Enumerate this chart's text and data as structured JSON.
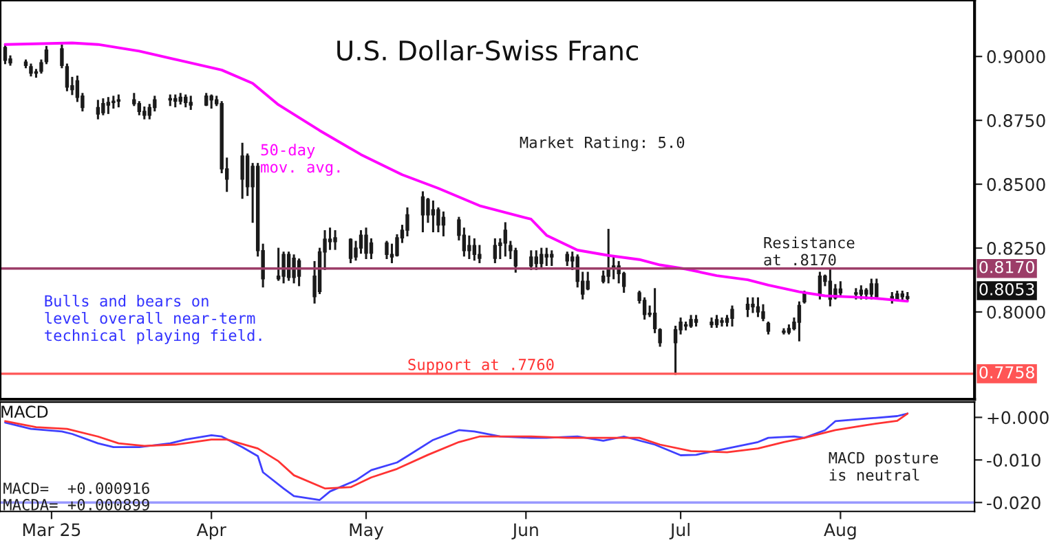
{
  "chart_data": [
    {
      "type": "candlestick",
      "title": "U.S. Dollar-Swiss Franc",
      "x": [
        "2025-02-20",
        "2025-02-21",
        "2025-02-24",
        "2025-02-25",
        "2025-02-26",
        "2025-02-27",
        "2025-02-28",
        "2025-03-03",
        "2025-03-04",
        "2025-03-05",
        "2025-03-06",
        "2025-03-07",
        "2025-03-10",
        "2025-03-11",
        "2025-03-12",
        "2025-03-13",
        "2025-03-14",
        "2025-03-17",
        "2025-03-18",
        "2025-03-19",
        "2025-03-20",
        "2025-03-21",
        "2025-03-24",
        "2025-03-25",
        "2025-03-26",
        "2025-03-27",
        "2025-03-28",
        "2025-03-31",
        "2025-04-01",
        "2025-04-02",
        "2025-04-03",
        "2025-04-04",
        "2025-04-07",
        "2025-04-08",
        "2025-04-09",
        "2025-04-10",
        "2025-04-11",
        "2025-04-14",
        "2025-04-15",
        "2025-04-16",
        "2025-04-17",
        "2025-04-18",
        "2025-04-21",
        "2025-04-22",
        "2025-04-23",
        "2025-04-24",
        "2025-04-25",
        "2025-04-28",
        "2025-04-29",
        "2025-04-30",
        "2025-05-01",
        "2025-05-02",
        "2025-05-05",
        "2025-05-06",
        "2025-05-07",
        "2025-05-08",
        "2025-05-09",
        "2025-05-12",
        "2025-05-13",
        "2025-05-14",
        "2025-05-15",
        "2025-05-16",
        "2025-05-19",
        "2025-05-20",
        "2025-05-21",
        "2025-05-22",
        "2025-05-23",
        "2025-05-26",
        "2025-05-27",
        "2025-05-28",
        "2025-05-29",
        "2025-05-30",
        "2025-06-02",
        "2025-06-03",
        "2025-06-04",
        "2025-06-05",
        "2025-06-06",
        "2025-06-09",
        "2025-06-10",
        "2025-06-11",
        "2025-06-12",
        "2025-06-13",
        "2025-06-16",
        "2025-06-17",
        "2025-06-18",
        "2025-06-19",
        "2025-06-20",
        "2025-06-23",
        "2025-06-24",
        "2025-06-25",
        "2025-06-26",
        "2025-06-27",
        "2025-06-30",
        "2025-07-01",
        "2025-07-02",
        "2025-07-03",
        "2025-07-04",
        "2025-07-07",
        "2025-07-08",
        "2025-07-09",
        "2025-07-10",
        "2025-07-11",
        "2025-07-14",
        "2025-07-15",
        "2025-07-16",
        "2025-07-17",
        "2025-07-18",
        "2025-07-21",
        "2025-07-22",
        "2025-07-23",
        "2025-07-24",
        "2025-07-25",
        "2025-07-28",
        "2025-07-29",
        "2025-07-30",
        "2025-07-31",
        "2025-08-01",
        "2025-08-04",
        "2025-08-05",
        "2025-08-06",
        "2025-08-07",
        "2025-08-08",
        "2025-08-11",
        "2025-08-12",
        "2025-08-13",
        "2025-08-14"
      ],
      "ohlc": [
        [
          0.9035,
          0.9047,
          0.8974,
          0.8985
        ],
        [
          0.899,
          0.9,
          0.8968,
          0.8975
        ],
        [
          0.8978,
          0.8984,
          0.8958,
          0.8965
        ],
        [
          0.896,
          0.8968,
          0.8926,
          0.8935
        ],
        [
          0.8935,
          0.8947,
          0.8921,
          0.894
        ],
        [
          0.8942,
          0.8984,
          0.8937,
          0.8975
        ],
        [
          0.898,
          0.9037,
          0.8974,
          0.9025
        ],
        [
          0.903,
          0.9042,
          0.8958,
          0.8965
        ],
        [
          0.896,
          0.8968,
          0.8868,
          0.888
        ],
        [
          0.8885,
          0.8916,
          0.8853,
          0.887
        ],
        [
          0.8905,
          0.8921,
          0.8826,
          0.884
        ],
        [
          0.8845,
          0.8853,
          0.8789,
          0.88
        ],
        [
          0.88,
          0.8826,
          0.8758,
          0.8775
        ],
        [
          0.878,
          0.8832,
          0.8774,
          0.8815
        ],
        [
          0.881,
          0.8837,
          0.8779,
          0.882
        ],
        [
          0.882,
          0.8842,
          0.88,
          0.8825
        ],
        [
          0.8825,
          0.8847,
          0.8805,
          0.883
        ],
        [
          0.883,
          0.8853,
          0.881,
          0.8815
        ],
        [
          0.8815,
          0.8821,
          0.8774,
          0.8785
        ],
        [
          0.8785,
          0.88,
          0.8758,
          0.877
        ],
        [
          0.877,
          0.881,
          0.8758,
          0.88
        ],
        [
          0.88,
          0.8842,
          0.8789,
          0.883
        ],
        [
          0.883,
          0.8847,
          0.881,
          0.8835
        ],
        [
          0.8835,
          0.8847,
          0.8805,
          0.8825
        ],
        [
          0.8825,
          0.8853,
          0.8816,
          0.884
        ],
        [
          0.884,
          0.8847,
          0.8805,
          0.882
        ],
        [
          0.882,
          0.8842,
          0.8795,
          0.881
        ],
        [
          0.881,
          0.8853,
          0.881,
          0.8845
        ],
        [
          0.8845,
          0.8847,
          0.88,
          0.883
        ],
        [
          0.883,
          0.8842,
          0.881,
          0.8815
        ],
        [
          0.8815,
          0.8821,
          0.8547,
          0.856
        ],
        [
          0.856,
          0.86,
          0.8474,
          0.852
        ],
        [
          0.852,
          0.8658,
          0.8447,
          0.861
        ],
        [
          0.861,
          0.8616,
          0.8458,
          0.849
        ],
        [
          0.849,
          0.8579,
          0.8353,
          0.857
        ],
        [
          0.857,
          0.8579,
          0.8221,
          0.824
        ],
        [
          0.824,
          0.8263,
          0.81,
          0.813
        ],
        [
          0.813,
          0.8247,
          0.8126,
          0.814
        ],
        [
          0.814,
          0.8232,
          0.8116,
          0.8225
        ],
        [
          0.8225,
          0.8232,
          0.8126,
          0.8135
        ],
        [
          0.8135,
          0.8221,
          0.8116,
          0.821
        ],
        [
          0.82,
          0.8205,
          0.8105,
          0.814
        ],
        [
          0.814,
          0.8195,
          0.8037,
          0.806
        ],
        [
          0.808,
          0.8247,
          0.8074,
          0.8235
        ],
        [
          0.8235,
          0.8316,
          0.8168,
          0.8285
        ],
        [
          0.8285,
          0.8326,
          0.8247,
          0.8275
        ],
        [
          0.8275,
          0.8316,
          0.8247,
          0.829
        ],
        [
          0.8284,
          0.8284,
          0.8195,
          0.821
        ],
        [
          0.8215,
          0.8274,
          0.8205,
          0.825
        ],
        [
          0.825,
          0.8316,
          0.8232,
          0.83
        ],
        [
          0.83,
          0.8326,
          0.8211,
          0.823
        ],
        [
          0.823,
          0.8284,
          0.8211,
          0.827
        ],
        [
          0.827,
          0.8274,
          0.8211,
          0.8225
        ],
        [
          0.8225,
          0.8263,
          0.8195,
          0.8215
        ],
        [
          0.8221,
          0.83,
          0.8221,
          0.829
        ],
        [
          0.829,
          0.8337,
          0.8274,
          0.832
        ],
        [
          0.832,
          0.8405,
          0.83,
          0.838
        ],
        [
          0.838,
          0.8468,
          0.8316,
          0.845
        ],
        [
          0.844,
          0.8442,
          0.8353,
          0.838
        ],
        [
          0.838,
          0.8432,
          0.8316,
          0.84
        ],
        [
          0.84,
          0.8405,
          0.8316,
          0.834
        ],
        [
          0.834,
          0.8389,
          0.83,
          0.837
        ],
        [
          0.836,
          0.8368,
          0.8284,
          0.83
        ],
        [
          0.83,
          0.8326,
          0.8221,
          0.824
        ],
        [
          0.824,
          0.8295,
          0.8211,
          0.826
        ],
        [
          0.826,
          0.8284,
          0.8205,
          0.8225
        ],
        [
          0.8225,
          0.8258,
          0.8195,
          0.821
        ],
        [
          0.821,
          0.8284,
          0.8195,
          0.826
        ],
        [
          0.826,
          0.8284,
          0.8211,
          0.827
        ],
        [
          0.827,
          0.8347,
          0.8221,
          0.832
        ],
        [
          0.826,
          0.8274,
          0.8211,
          0.824
        ],
        [
          0.824,
          0.8247,
          0.8158,
          0.818
        ],
        [
          0.818,
          0.8237,
          0.8168,
          0.8215
        ],
        [
          0.8215,
          0.8237,
          0.8168,
          0.819
        ],
        [
          0.819,
          0.8247,
          0.8179,
          0.8225
        ],
        [
          0.8225,
          0.8247,
          0.8184,
          0.8215
        ],
        [
          0.8215,
          0.8237,
          0.8184,
          0.8225
        ],
        [
          0.8225,
          0.8232,
          0.8184,
          0.82
        ],
        [
          0.82,
          0.8232,
          0.8168,
          0.8215
        ],
        [
          0.8215,
          0.8221,
          0.81,
          0.812
        ],
        [
          0.812,
          0.8153,
          0.8053,
          0.807
        ],
        [
          0.809,
          0.8153,
          0.8089,
          0.812
        ],
        [
          0.812,
          0.8158,
          0.8116,
          0.814
        ],
        [
          0.814,
          0.8321,
          0.8116,
          0.817
        ],
        [
          0.817,
          0.8211,
          0.8132,
          0.818
        ],
        [
          0.818,
          0.8195,
          0.8116,
          0.815
        ],
        [
          0.815,
          0.8153,
          0.8079,
          0.81
        ],
        [
          0.8075,
          0.8079,
          0.8037,
          0.8045
        ],
        [
          0.8045,
          0.8053,
          0.7974,
          0.799
        ],
        [
          0.799,
          0.8021,
          0.7984,
          0.7995
        ],
        [
          0.7995,
          0.8089,
          0.7921,
          0.7935
        ],
        [
          0.793,
          0.7932,
          0.7868,
          0.788
        ],
        [
          0.788,
          0.7942,
          0.7758,
          0.793
        ],
        [
          0.793,
          0.7974,
          0.7916,
          0.796
        ],
        [
          0.795,
          0.7958,
          0.7932,
          0.7945
        ],
        [
          0.7945,
          0.7984,
          0.7942,
          0.797
        ],
        [
          0.797,
          0.7984,
          0.7947,
          0.796
        ],
        [
          0.796,
          0.7974,
          0.7942,
          0.795
        ],
        [
          0.795,
          0.7984,
          0.7942,
          0.797
        ],
        [
          0.7965,
          0.7974,
          0.7947,
          0.796
        ],
        [
          0.796,
          0.7984,
          0.7947,
          0.7975
        ],
        [
          0.7975,
          0.8021,
          0.7947,
          0.801
        ],
        [
          0.801,
          0.8053,
          0.7984,
          0.803
        ],
        [
          0.803,
          0.8053,
          0.8,
          0.802
        ],
        [
          0.802,
          0.8053,
          0.7984,
          0.8
        ],
        [
          0.8,
          0.8026,
          0.7968,
          0.7975
        ],
        [
          0.7955,
          0.7958,
          0.7916,
          0.7925
        ],
        [
          0.7925,
          0.7932,
          0.7916,
          0.792
        ],
        [
          0.792,
          0.7947,
          0.7916,
          0.7935
        ],
        [
          0.7935,
          0.7974,
          0.7932,
          0.796
        ],
        [
          0.796,
          0.8037,
          0.7889,
          0.8025
        ],
        [
          0.804,
          0.8079,
          0.8037,
          0.807
        ],
        [
          0.807,
          0.8153,
          0.8053,
          0.814
        ],
        [
          0.814,
          0.8142,
          0.8105,
          0.812
        ],
        [
          0.812,
          0.8168,
          0.8026,
          0.805
        ],
        [
          0.8055,
          0.8105,
          0.8053,
          0.809
        ],
        [
          0.809,
          0.8116,
          0.8063,
          0.8075
        ],
        [
          0.8075,
          0.8089,
          0.8053,
          0.807
        ],
        [
          0.807,
          0.81,
          0.8053,
          0.8085
        ],
        [
          0.8085,
          0.8089,
          0.8053,
          0.807
        ],
        [
          0.807,
          0.8126,
          0.8053,
          0.811
        ],
        [
          0.811,
          0.8126,
          0.8053,
          0.806
        ],
        [
          0.806,
          0.8074,
          0.8037,
          0.805
        ],
        [
          0.805,
          0.8079,
          0.8047,
          0.807
        ],
        [
          0.807,
          0.8079,
          0.8047,
          0.806
        ],
        [
          0.806,
          0.8074,
          0.8047,
          0.8053
        ]
      ],
      "color": "#1a1a1a",
      "series": [
        {
          "type": "line",
          "name": "50-day\nmov. avg.",
          "color": "#ff00ff",
          "x": [
            "2025-02-20",
            "2025-03-05",
            "2025-03-10",
            "2025-03-18",
            "2025-03-26",
            "2025-04-03",
            "2025-04-09",
            "2025-04-14",
            "2025-04-22",
            "2025-04-30",
            "2025-05-08",
            "2025-05-15",
            "2025-05-23",
            "2025-06-02",
            "2025-06-05",
            "2025-06-11",
            "2025-06-17",
            "2025-06-23",
            "2025-06-27",
            "2025-07-02",
            "2025-07-08",
            "2025-07-14",
            "2025-07-18",
            "2025-07-24",
            "2025-07-29",
            "2025-08-04",
            "2025-08-08",
            "2025-08-14"
          ],
          "values": [
            0.9047,
            0.9053,
            0.9047,
            0.9021,
            0.8984,
            0.8947,
            0.8895,
            0.8811,
            0.871,
            0.8616,
            0.8537,
            0.8484,
            0.8416,
            0.8363,
            0.83,
            0.8242,
            0.8221,
            0.8205,
            0.8184,
            0.8168,
            0.8142,
            0.8126,
            0.8105,
            0.8079,
            0.8063,
            0.8058,
            0.8053,
            0.8042
          ]
        }
      ],
      "xlim": [
        "2025-02-19",
        "2025-08-27"
      ],
      "ylim": [
        0.7658,
        0.9221
      ],
      "yticks": [
        {
          "value": 0.8,
          "label": "0.8000"
        },
        {
          "value": 0.825,
          "label": "0.8250"
        },
        {
          "value": 0.85,
          "label": "0.8500"
        },
        {
          "value": 0.875,
          "label": "0.8750"
        },
        {
          "value": 0.9,
          "label": "0.9000"
        }
      ],
      "tick_labels": "y",
      "ref_lines": [
        {
          "axis": "y",
          "value": 0.817,
          "label": "0.8170",
          "color": "#9c3d68"
        },
        {
          "axis": "y",
          "value": 0.7758,
          "label": "0.7758",
          "color": "#ff5555"
        }
      ],
      "annotations": [
        "Market Rating: 5.0",
        "Bulls and bears on\nlevel overall near-term\ntechnical playing field.",
        {
          "text": "Resistance\nat .8170",
          "x": "2025-07-17",
          "y": 0.817
        },
        {
          "text": "Support at .7760",
          "x": "2025-05-09",
          "y": 0.776
        },
        "0.8053"
      ],
      "grid": false,
      "legend": false
    },
    {
      "type": "line",
      "title": "MACD",
      "series": [
        {
          "color": "#4040ff",
          "x": [
            "2025-02-20",
            "2025-02-25",
            "2025-03-03",
            "2025-03-05",
            "2025-03-10",
            "2025-03-13",
            "2025-03-18",
            "2025-03-24",
            "2025-03-27",
            "2025-04-01",
            "2025-04-03",
            "2025-04-07",
            "2025-04-10",
            "2025-04-11",
            "2025-04-15",
            "2025-04-17",
            "2025-04-22",
            "2025-04-24",
            "2025-04-29",
            "2025-05-02",
            "2025-05-07",
            "2025-05-09",
            "2025-05-14",
            "2025-05-19",
            "2025-05-22",
            "2025-05-27",
            "2025-06-02",
            "2025-06-05",
            "2025-06-11",
            "2025-06-16",
            "2025-06-20",
            "2025-06-26",
            "2025-07-01",
            "2025-07-04",
            "2025-07-10",
            "2025-07-16",
            "2025-07-18",
            "2025-07-23",
            "2025-07-25",
            "2025-07-29",
            "2025-07-31",
            "2025-08-06",
            "2025-08-12",
            "2025-08-14"
          ],
          "values": [
            -0.0012,
            -0.0027,
            -0.0033,
            -0.0039,
            -0.0061,
            -0.007,
            -0.007,
            -0.0061,
            -0.0052,
            -0.0042,
            -0.0045,
            -0.007,
            -0.0091,
            -0.0129,
            -0.0167,
            -0.0185,
            -0.0194,
            -0.0174,
            -0.0148,
            -0.0124,
            -0.0106,
            -0.0091,
            -0.0053,
            -0.003,
            -0.0033,
            -0.0045,
            -0.0048,
            -0.0048,
            -0.0045,
            -0.0055,
            -0.0045,
            -0.0064,
            -0.0089,
            -0.0088,
            -0.0073,
            -0.0058,
            -0.0048,
            -0.0045,
            -0.0048,
            -0.003,
            -0.0009,
            -0.0003,
            0.0003,
            0.0009
          ]
        },
        {
          "color": "#ff3333",
          "x": [
            "2025-02-20",
            "2025-02-26",
            "2025-03-04",
            "2025-03-10",
            "2025-03-14",
            "2025-03-19",
            "2025-03-25",
            "2025-04-01",
            "2025-04-04",
            "2025-04-10",
            "2025-04-14",
            "2025-04-17",
            "2025-04-23",
            "2025-04-28",
            "2025-05-02",
            "2025-05-07",
            "2025-05-13",
            "2025-05-19",
            "2025-05-23",
            "2025-06-02",
            "2025-06-09",
            "2025-06-17",
            "2025-06-23",
            "2025-06-27",
            "2025-07-03",
            "2025-07-10",
            "2025-07-16",
            "2025-07-21",
            "2025-07-25",
            "2025-07-31",
            "2025-08-06",
            "2025-08-12",
            "2025-08-14"
          ],
          "values": [
            -0.0009,
            -0.0023,
            -0.0027,
            -0.0045,
            -0.0061,
            -0.0067,
            -0.0064,
            -0.0052,
            -0.0052,
            -0.0073,
            -0.0103,
            -0.0136,
            -0.0167,
            -0.0164,
            -0.0141,
            -0.0121,
            -0.0088,
            -0.0058,
            -0.0045,
            -0.0045,
            -0.0048,
            -0.0048,
            -0.0048,
            -0.0064,
            -0.0079,
            -0.0082,
            -0.0073,
            -0.0058,
            -0.0048,
            -0.003,
            -0.0018,
            -0.0008,
            0.0009
          ]
        }
      ],
      "xlim": [
        "2025-02-19",
        "2025-08-27"
      ],
      "xticks": [
        {
          "value": "2025-03-01",
          "label": "Mar 25"
        },
        {
          "value": "2025-04-01",
          "label": "Apr"
        },
        {
          "value": "2025-05-01",
          "label": "May"
        },
        {
          "value": "2025-06-01",
          "label": "Jun"
        },
        {
          "value": "2025-07-01",
          "label": "Jul"
        },
        {
          "value": "2025-08-01",
          "label": "Aug"
        }
      ],
      "ylim": [
        -0.0221,
        0.0036
      ],
      "yticks": [
        {
          "value": -0.02,
          "label": "-0.020"
        },
        {
          "value": -0.01,
          "label": "-0.010"
        },
        {
          "value": 0,
          "label": "+0.000"
        }
      ],
      "ref_lines": [
        {
          "axis": "y",
          "value": -0.02,
          "color": "#9999ff"
        }
      ],
      "annotations": [
        "MACD posture\nis neutral",
        "MACD=  +0.000916",
        "MACDA= +0.000899"
      ],
      "grid": false,
      "legend": false
    }
  ]
}
